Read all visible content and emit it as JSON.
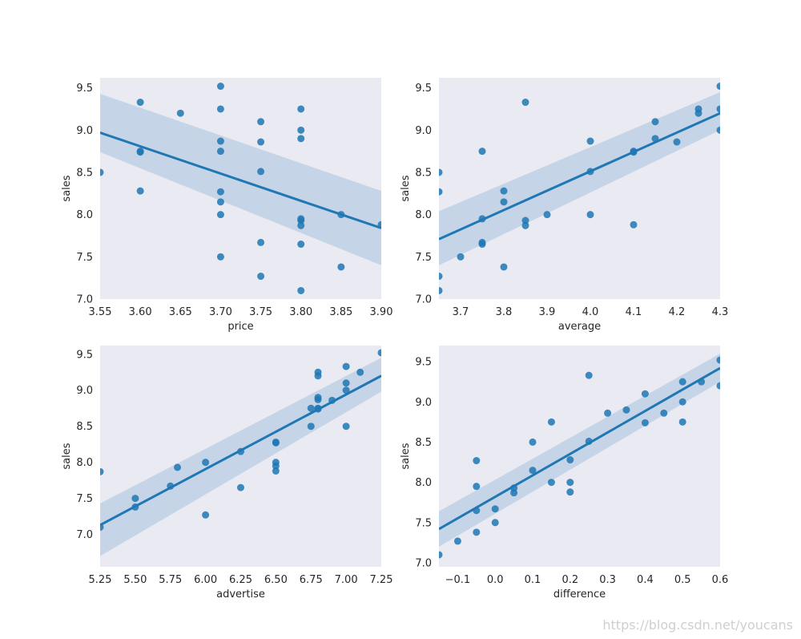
{
  "watermark": "https://blog.csdn.net/youcans",
  "colors": {
    "point": "#1f77b4",
    "line": "#1f77b4",
    "band": "#1f77b4",
    "plot_background": "#eaeaf2"
  },
  "chart_data": [
    {
      "type": "scatter",
      "xlabel": "price",
      "ylabel": "sales",
      "xlim": [
        3.55,
        3.9
      ],
      "ylim": [
        7.0,
        9.62
      ],
      "xticks": [
        "3.55",
        "3.60",
        "3.65",
        "3.70",
        "3.75",
        "3.80",
        "3.85",
        "3.90"
      ],
      "yticks": [
        "7.0",
        "7.5",
        "8.0",
        "8.5",
        "9.0",
        "9.5"
      ],
      "grid": false,
      "points": [
        [
          3.55,
          8.5
        ],
        [
          3.6,
          9.33
        ],
        [
          3.6,
          8.75
        ],
        [
          3.6,
          8.74
        ],
        [
          3.6,
          8.28
        ],
        [
          3.65,
          9.2
        ],
        [
          3.7,
          9.52
        ],
        [
          3.7,
          9.25
        ],
        [
          3.7,
          8.87
        ],
        [
          3.7,
          8.75
        ],
        [
          3.7,
          8.27
        ],
        [
          3.7,
          8.15
        ],
        [
          3.7,
          8.0
        ],
        [
          3.7,
          7.5
        ],
        [
          3.75,
          9.1
        ],
        [
          3.75,
          8.86
        ],
        [
          3.75,
          8.51
        ],
        [
          3.75,
          7.67
        ],
        [
          3.75,
          7.27
        ],
        [
          3.8,
          9.25
        ],
        [
          3.8,
          9.0
        ],
        [
          3.8,
          8.9
        ],
        [
          3.8,
          7.95
        ],
        [
          3.8,
          7.93
        ],
        [
          3.8,
          7.87
        ],
        [
          3.8,
          7.65
        ],
        [
          3.8,
          7.1
        ],
        [
          3.85,
          8.0
        ],
        [
          3.85,
          7.38
        ],
        [
          3.9,
          7.88
        ]
      ],
      "regression": {
        "x0": 3.55,
        "y0": 8.97,
        "x1": 3.9,
        "y1": 7.84
      },
      "ci_band": {
        "lower": [
          8.74,
          7.4
        ],
        "upper": [
          9.43,
          8.28
        ]
      }
    },
    {
      "type": "scatter",
      "xlabel": "average",
      "ylabel": "sales",
      "xlim": [
        3.65,
        4.3
      ],
      "ylim": [
        7.0,
        9.62
      ],
      "xticks": [
        "3.7",
        "3.8",
        "3.9",
        "4.0",
        "4.1",
        "4.2",
        "4.3"
      ],
      "yticks": [
        "7.0",
        "7.5",
        "8.0",
        "8.5",
        "9.0",
        "9.5"
      ],
      "grid": false,
      "points": [
        [
          3.65,
          8.5
        ],
        [
          3.65,
          8.27
        ],
        [
          3.65,
          7.27
        ],
        [
          3.65,
          7.1
        ],
        [
          3.7,
          7.5
        ],
        [
          3.75,
          8.75
        ],
        [
          3.75,
          7.95
        ],
        [
          3.75,
          7.67
        ],
        [
          3.75,
          7.65
        ],
        [
          3.8,
          8.28
        ],
        [
          3.8,
          8.15
        ],
        [
          3.8,
          7.38
        ],
        [
          3.85,
          9.33
        ],
        [
          3.85,
          7.93
        ],
        [
          3.85,
          7.87
        ],
        [
          3.9,
          8.0
        ],
        [
          4.0,
          8.87
        ],
        [
          4.0,
          8.51
        ],
        [
          4.0,
          8.0
        ],
        [
          4.1,
          8.75
        ],
        [
          4.1,
          8.74
        ],
        [
          4.1,
          7.88
        ],
        [
          4.15,
          9.1
        ],
        [
          4.15,
          8.9
        ],
        [
          4.2,
          8.86
        ],
        [
          4.25,
          9.25
        ],
        [
          4.25,
          9.2
        ],
        [
          4.3,
          9.52
        ],
        [
          4.3,
          9.25
        ],
        [
          4.3,
          9.0
        ]
      ],
      "regression": {
        "x0": 3.65,
        "y0": 7.71,
        "x1": 4.3,
        "y1": 9.2
      },
      "ci_band": {
        "lower": [
          7.4,
          9.0
        ],
        "upper": [
          8.04,
          9.45
        ]
      }
    },
    {
      "type": "scatter",
      "xlabel": "advertise",
      "ylabel": "sales",
      "xlim": [
        5.25,
        7.25
      ],
      "ylim": [
        6.55,
        9.62
      ],
      "xticks": [
        "5.25",
        "5.50",
        "5.75",
        "6.00",
        "6.25",
        "6.50",
        "6.75",
        "7.00",
        "7.25"
      ],
      "yticks": [
        "7.0",
        "7.5",
        "8.0",
        "8.5",
        "9.0",
        "9.5"
      ],
      "grid": false,
      "points": [
        [
          5.25,
          7.87
        ],
        [
          5.25,
          7.1
        ],
        [
          5.5,
          7.5
        ],
        [
          5.5,
          7.38
        ],
        [
          5.75,
          7.67
        ],
        [
          5.8,
          7.93
        ],
        [
          6.0,
          8.0
        ],
        [
          6.0,
          7.27
        ],
        [
          6.25,
          8.15
        ],
        [
          6.25,
          7.65
        ],
        [
          6.5,
          8.28
        ],
        [
          6.5,
          8.27
        ],
        [
          6.5,
          8.0
        ],
        [
          6.5,
          7.95
        ],
        [
          6.5,
          7.88
        ],
        [
          6.75,
          8.75
        ],
        [
          6.75,
          8.5
        ],
        [
          6.8,
          9.25
        ],
        [
          6.8,
          9.2
        ],
        [
          6.8,
          8.9
        ],
        [
          6.8,
          8.87
        ],
        [
          6.8,
          8.75
        ],
        [
          6.8,
          8.74
        ],
        [
          6.9,
          8.86
        ],
        [
          7.0,
          9.33
        ],
        [
          7.0,
          9.1
        ],
        [
          7.0,
          9.0
        ],
        [
          7.0,
          8.5
        ],
        [
          7.1,
          9.25
        ],
        [
          7.25,
          9.52
        ]
      ],
      "regression": {
        "x0": 5.25,
        "y0": 7.13,
        "x1": 7.25,
        "y1": 9.2
      },
      "ci_band": {
        "lower": [
          6.7,
          8.98
        ],
        "upper": [
          7.43,
          9.45
        ]
      }
    },
    {
      "type": "scatter",
      "xlabel": "difference",
      "ylabel": "sales",
      "xlim": [
        -0.15,
        0.6
      ],
      "ylim": [
        6.95,
        9.7
      ],
      "xticks": [
        "−0.1",
        "0.0",
        "0.1",
        "0.2",
        "0.3",
        "0.4",
        "0.5",
        "0.6"
      ],
      "yticks": [
        "7.0",
        "7.5",
        "8.0",
        "8.5",
        "9.0",
        "9.5"
      ],
      "grid": false,
      "points": [
        [
          -0.15,
          7.1
        ],
        [
          -0.1,
          7.27
        ],
        [
          -0.05,
          8.27
        ],
        [
          -0.05,
          7.95
        ],
        [
          -0.05,
          7.65
        ],
        [
          -0.05,
          7.38
        ],
        [
          0.0,
          7.67
        ],
        [
          0.0,
          7.5
        ],
        [
          0.05,
          7.93
        ],
        [
          0.05,
          7.87
        ],
        [
          0.1,
          8.5
        ],
        [
          0.1,
          8.15
        ],
        [
          0.15,
          8.75
        ],
        [
          0.15,
          8.0
        ],
        [
          0.2,
          8.28
        ],
        [
          0.2,
          8.0
        ],
        [
          0.2,
          7.88
        ],
        [
          0.25,
          9.33
        ],
        [
          0.25,
          8.51
        ],
        [
          0.3,
          8.86
        ],
        [
          0.35,
          8.9
        ],
        [
          0.4,
          9.1
        ],
        [
          0.4,
          8.74
        ],
        [
          0.45,
          8.86
        ],
        [
          0.5,
          9.25
        ],
        [
          0.5,
          9.0
        ],
        [
          0.5,
          8.75
        ],
        [
          0.55,
          9.25
        ],
        [
          0.6,
          9.52
        ],
        [
          0.6,
          9.2
        ]
      ],
      "regression": {
        "x0": -0.15,
        "y0": 7.42,
        "x1": 0.6,
        "y1": 9.42
      },
      "ci_band": {
        "lower": [
          7.2,
          9.25
        ],
        "upper": [
          7.64,
          9.6
        ]
      }
    }
  ]
}
